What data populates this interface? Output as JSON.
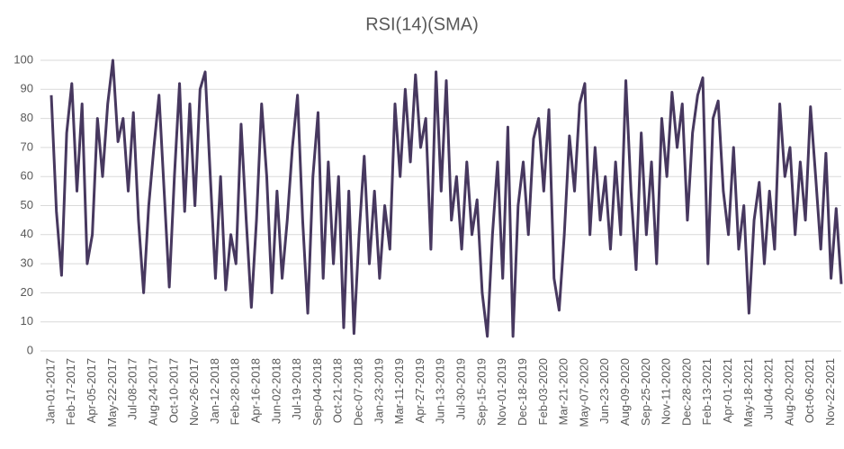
{
  "chart_data": {
    "type": "line",
    "title": "RSI(14)(SMA)",
    "categories": [
      "Jan-01-2017",
      null,
      null,
      null,
      "Feb-17-2017",
      null,
      null,
      null,
      "Apr-05-2017",
      null,
      null,
      null,
      "May-22-2017",
      null,
      null,
      null,
      "Jul-08-2017",
      null,
      null,
      null,
      "Aug-24-2017",
      null,
      null,
      null,
      "Oct-10-2017",
      null,
      null,
      null,
      "Nov-26-2017",
      null,
      null,
      null,
      "Jan-12-2018",
      null,
      null,
      null,
      "Feb-28-2018",
      null,
      null,
      null,
      "Apr-16-2018",
      null,
      null,
      null,
      "Jun-02-2018",
      null,
      null,
      null,
      "Jul-19-2018",
      null,
      null,
      null,
      "Sep-04-2018",
      null,
      null,
      null,
      "Oct-21-2018",
      null,
      null,
      null,
      "Dec-07-2018",
      null,
      null,
      null,
      "Jan-23-2019",
      null,
      null,
      null,
      "Mar-11-2019",
      null,
      null,
      null,
      "Apr-27-2019",
      null,
      null,
      null,
      "Jun-13-2019",
      null,
      null,
      null,
      "Jul-30-2019",
      null,
      null,
      null,
      "Sep-15-2019",
      null,
      null,
      null,
      "Nov-01-2019",
      null,
      null,
      null,
      "Dec-18-2019",
      null,
      null,
      null,
      "Feb-03-2020",
      null,
      null,
      null,
      "Mar-21-2020",
      null,
      null,
      null,
      "May-07-2020",
      null,
      null,
      null,
      "Jun-23-2020",
      null,
      null,
      null,
      "Aug-09-2020",
      null,
      null,
      null,
      "Sep-25-2020",
      null,
      null,
      null,
      "Nov-11-2020",
      null,
      null,
      null,
      "Dec-28-2020",
      null,
      null,
      null,
      "Feb-13-2021",
      null,
      null,
      null,
      "Apr-01-2021",
      null,
      null,
      null,
      "May-18-2021",
      null,
      null,
      null,
      "Jul-04-2021",
      null,
      null,
      null,
      "Aug-20-2021",
      null,
      null,
      null,
      "Oct-06-2021",
      null,
      null,
      null,
      "Nov-22-2021",
      null,
      null
    ],
    "values": [
      88,
      48,
      26,
      75,
      92,
      55,
      85,
      30,
      40,
      80,
      60,
      85,
      100,
      72,
      80,
      55,
      82,
      45,
      20,
      50,
      70,
      88,
      55,
      22,
      60,
      92,
      48,
      85,
      50,
      90,
      96,
      60,
      25,
      60,
      21,
      40,
      30,
      78,
      45,
      15,
      45,
      85,
      60,
      20,
      55,
      25,
      45,
      70,
      88,
      45,
      13,
      60,
      82,
      25,
      65,
      30,
      60,
      8,
      55,
      6,
      40,
      67,
      30,
      55,
      25,
      50,
      35,
      85,
      60,
      90,
      65,
      95,
      70,
      80,
      35,
      96,
      55,
      93,
      45,
      60,
      35,
      65,
      40,
      52,
      20,
      5,
      40,
      65,
      25,
      77,
      5,
      50,
      65,
      40,
      73,
      80,
      55,
      83,
      25,
      14,
      40,
      74,
      55,
      85,
      92,
      40,
      70,
      45,
      60,
      35,
      65,
      40,
      93,
      55,
      28,
      75,
      40,
      65,
      30,
      80,
      60,
      89,
      70,
      85,
      45,
      75,
      88,
      94,
      30,
      80,
      86,
      55,
      40,
      70,
      35,
      50,
      13,
      45,
      58,
      30,
      55,
      35,
      85,
      60,
      70,
      40,
      65,
      45,
      84,
      60,
      35,
      68,
      25,
      49,
      23
    ],
    "color": "#47385f",
    "ylim": [
      0,
      100
    ],
    "yticks": [
      0,
      10,
      20,
      30,
      40,
      50,
      60,
      70,
      80,
      90,
      100
    ],
    "grid": true
  }
}
